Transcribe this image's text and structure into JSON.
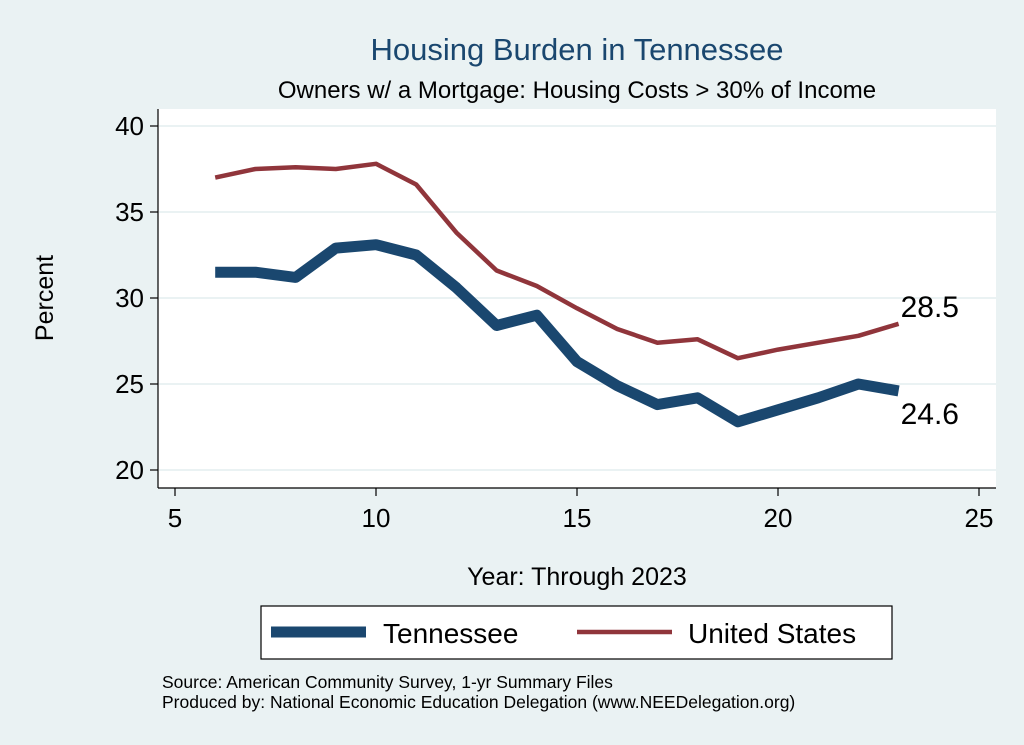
{
  "chart_data": {
    "type": "line",
    "title": "Housing Burden in Tennessee",
    "subtitle": "Owners w/ a Mortgage: Housing Costs > 30% of Income",
    "xlabel": "Year: Through 2023",
    "ylabel": "Percent",
    "xlim": [
      5,
      25
    ],
    "ylim": [
      20,
      40
    ],
    "xticks": [
      5,
      10,
      15,
      20,
      25
    ],
    "yticks": [
      20,
      25,
      30,
      35,
      40
    ],
    "grid": true,
    "legend_position": "bottom",
    "x": [
      6,
      7,
      8,
      9,
      10,
      11,
      12,
      13,
      14,
      15,
      16,
      17,
      18,
      19,
      20,
      21,
      22,
      23
    ],
    "series": [
      {
        "name": "Tennessee",
        "color": "#1a476f",
        "values": [
          31.5,
          31.5,
          31.2,
          32.9,
          33.1,
          32.5,
          30.6,
          28.4,
          29.0,
          26.3,
          24.9,
          23.8,
          24.2,
          22.8,
          23.5,
          24.2,
          25.0,
          24.6
        ],
        "end_label": "24.6"
      },
      {
        "name": "United States",
        "color": "#90353b",
        "values": [
          37.0,
          37.5,
          37.6,
          37.5,
          37.8,
          36.6,
          33.8,
          31.6,
          30.7,
          29.4,
          28.2,
          27.4,
          27.6,
          26.5,
          27.0,
          27.4,
          27.8,
          28.5
        ],
        "end_label": "28.5"
      }
    ]
  },
  "notes": {
    "source": "Source: American Community Survey, 1-yr Summary Files",
    "produced_by": "Produced by: National Economic Education Delegation (www.NEEDelegation.org)"
  }
}
